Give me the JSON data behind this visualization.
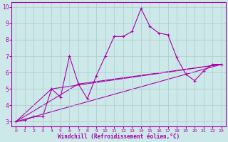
{
  "title": "",
  "xlabel": "Windchill (Refroidissement éolien,°C)",
  "ylabel": "",
  "bg_color": "#cce8e8",
  "grid_color": "#aacccc",
  "line_color": "#aa00aa",
  "xlim": [
    -0.5,
    23.5
  ],
  "ylim": [
    2.7,
    10.3
  ],
  "xticks": [
    0,
    1,
    2,
    3,
    4,
    5,
    6,
    7,
    8,
    9,
    10,
    11,
    12,
    13,
    14,
    15,
    16,
    17,
    18,
    19,
    20,
    21,
    22,
    23
  ],
  "yticks": [
    3,
    4,
    5,
    6,
    7,
    8,
    9,
    10
  ],
  "line1_x": [
    0,
    1,
    2,
    3,
    4,
    5,
    6,
    7,
    8,
    9,
    10,
    11,
    12,
    13,
    14,
    15,
    16,
    17,
    18,
    19,
    20,
    21,
    22,
    23
  ],
  "line1_y": [
    3.0,
    3.1,
    3.3,
    3.3,
    5.0,
    4.5,
    7.0,
    5.3,
    4.4,
    5.8,
    7.0,
    8.2,
    8.2,
    8.5,
    9.9,
    8.8,
    8.4,
    8.3,
    6.9,
    5.9,
    5.5,
    6.1,
    6.5,
    6.5
  ],
  "line2_x": [
    0,
    23
  ],
  "line2_y": [
    3.0,
    6.5
  ],
  "line3_x": [
    0,
    4,
    23
  ],
  "line3_y": [
    3.0,
    5.0,
    6.5
  ],
  "line4_x": [
    0,
    7,
    23
  ],
  "line4_y": [
    3.0,
    5.3,
    6.5
  ],
  "xlabel_fontsize": 5.5,
  "tick_fontsize_x": 4.5,
  "tick_fontsize_y": 5.5
}
